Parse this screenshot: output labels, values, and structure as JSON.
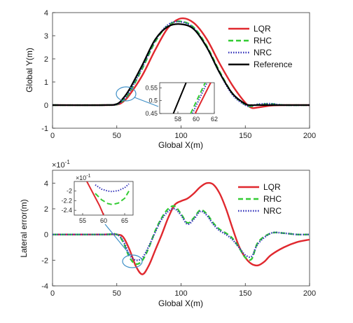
{
  "chart_data": [
    {
      "type": "line",
      "xlabel": "Global X(m)",
      "ylabel": "Global Y(m)",
      "xlim": [
        0,
        200
      ],
      "ylim": [
        -1,
        4
      ],
      "xticks": [
        0,
        50,
        100,
        150,
        200
      ],
      "yticks": [
        -1,
        0,
        1,
        2,
        3,
        4
      ],
      "legend_position": "top-right",
      "series": [
        {
          "name": "LQR",
          "color": "#e0282e",
          "style": "solid",
          "x": [
            0,
            40,
            50,
            55,
            60,
            70,
            80,
            90,
            100,
            110,
            120,
            130,
            140,
            150,
            155,
            160,
            170,
            180,
            200
          ],
          "y": [
            0,
            0,
            0.02,
            0.15,
            0.45,
            1.3,
            2.4,
            3.35,
            3.75,
            3.55,
            2.85,
            1.8,
            0.85,
            0.1,
            -0.12,
            -0.1,
            -0.02,
            0,
            0
          ]
        },
        {
          "name": "RHC",
          "color": "#33cc33",
          "style": "dashed",
          "x": [
            0,
            40,
            50,
            55,
            60,
            70,
            80,
            90,
            100,
            110,
            120,
            130,
            140,
            150,
            155,
            160,
            170,
            180,
            200
          ],
          "y": [
            0,
            0,
            0.03,
            0.2,
            0.55,
            1.6,
            2.75,
            3.45,
            3.62,
            3.35,
            2.55,
            1.45,
            0.5,
            0.02,
            -0.05,
            0.02,
            0.05,
            0,
            0
          ]
        },
        {
          "name": "NRC",
          "color": "#3333bb",
          "style": "dotted",
          "x": [
            0,
            40,
            50,
            55,
            60,
            70,
            80,
            90,
            100,
            110,
            120,
            130,
            140,
            150,
            155,
            160,
            170,
            180,
            200
          ],
          "y": [
            0,
            0,
            0.03,
            0.22,
            0.58,
            1.65,
            2.8,
            3.48,
            3.6,
            3.32,
            2.5,
            1.4,
            0.45,
            0.0,
            -0.03,
            0.04,
            0.06,
            0,
            0
          ]
        },
        {
          "name": "Reference",
          "color": "#000000",
          "style": "solid",
          "x": [
            0,
            40,
            50,
            55,
            60,
            70,
            80,
            90,
            100,
            110,
            120,
            130,
            140,
            150,
            155,
            160,
            170,
            180,
            200
          ],
          "y": [
            0,
            0,
            0.05,
            0.3,
            0.7,
            1.75,
            2.85,
            3.4,
            3.5,
            3.28,
            2.5,
            1.4,
            0.5,
            0.05,
            0,
            0,
            0,
            0,
            0
          ]
        }
      ],
      "inset": {
        "xlim": [
          56,
          62
        ],
        "ylim": [
          0.45,
          0.57
        ],
        "xticks": [
          58,
          60,
          62
        ],
        "yticks": [
          0.45,
          0.5,
          0.55
        ],
        "series": [
          {
            "name": "LQR",
            "x": [
              59.9,
              61.6
            ],
            "y": [
              0.45,
              0.57
            ]
          },
          {
            "name": "RHC",
            "x": [
              59.4,
              61.0
            ],
            "y": [
              0.45,
              0.57
            ]
          },
          {
            "name": "NRC",
            "x": [
              59.6,
              61.2
            ],
            "y": [
              0.45,
              0.57
            ]
          },
          {
            "name": "Reference",
            "x": [
              57.5,
              58.9
            ],
            "y": [
              0.45,
              0.57
            ]
          }
        ]
      }
    },
    {
      "type": "line",
      "xlabel": "Global X(m)",
      "ylabel": "Lateral error(m)",
      "scale_label": "×10",
      "scale_exp": "-1",
      "xlim": [
        0,
        200
      ],
      "ylim": [
        -4,
        5
      ],
      "xticks": [
        0,
        50,
        100,
        150,
        200
      ],
      "yticks": [
        -4,
        -2,
        0,
        2,
        4
      ],
      "legend_position": "top-right",
      "series": [
        {
          "name": "LQR",
          "color": "#e0282e",
          "style": "solid",
          "x": [
            0,
            40,
            50,
            55,
            60,
            65,
            70,
            75,
            80,
            85,
            90,
            95,
            100,
            105,
            110,
            115,
            120,
            125,
            130,
            135,
            140,
            145,
            150,
            155,
            160,
            165,
            170,
            180,
            190,
            200
          ],
          "y": [
            0,
            0,
            0,
            -0.2,
            -1.2,
            -2.5,
            -3.1,
            -2.4,
            -1.2,
            0.0,
            1.3,
            2.3,
            2.6,
            2.8,
            3.2,
            3.7,
            4.0,
            3.9,
            3.2,
            2.0,
            0.5,
            -0.9,
            -1.8,
            -2.3,
            -2.4,
            -2.1,
            -1.6,
            -1.0,
            -0.6,
            -0.4
          ]
        },
        {
          "name": "RHC",
          "color": "#33cc33",
          "style": "dashed",
          "x": [
            0,
            40,
            50,
            55,
            60,
            65,
            70,
            75,
            80,
            85,
            90,
            95,
            100,
            105,
            110,
            115,
            120,
            125,
            130,
            135,
            140,
            145,
            150,
            155,
            160,
            170,
            180,
            190,
            200
          ],
          "y": [
            0,
            0,
            0,
            -0.6,
            -1.8,
            -2.3,
            -2.0,
            -1.0,
            0.3,
            1.3,
            2.0,
            2.2,
            1.6,
            0.9,
            1.3,
            1.9,
            1.6,
            0.9,
            0.4,
            0.1,
            -0.3,
            -1.0,
            -1.8,
            -1.9,
            -0.6,
            0.1,
            0.1,
            0,
            0
          ]
        },
        {
          "name": "NRC",
          "color": "#3333bb",
          "style": "dotted",
          "x": [
            0,
            40,
            50,
            55,
            60,
            65,
            70,
            75,
            80,
            85,
            90,
            95,
            100,
            105,
            110,
            115,
            120,
            125,
            130,
            135,
            140,
            145,
            150,
            155,
            160,
            170,
            180,
            190,
            200
          ],
          "y": [
            0,
            0,
            0,
            -0.5,
            -1.6,
            -2.0,
            -1.8,
            -0.9,
            0.2,
            1.2,
            1.8,
            2.0,
            1.5,
            0.8,
            1.2,
            1.8,
            1.5,
            0.8,
            0.3,
            0.0,
            -0.4,
            -1.0,
            -1.6,
            -1.7,
            -0.7,
            0.1,
            0.1,
            0,
            0
          ]
        }
      ],
      "inset": {
        "scale_label": "×10",
        "scale_exp": "-1",
        "xlim": [
          53,
          67
        ],
        "ylim": [
          -2.5,
          -1.8
        ],
        "xticks": [
          55,
          60,
          65
        ],
        "yticks": [
          -2,
          -2.2,
          -2.4
        ],
        "series": [
          {
            "name": "LQR",
            "x": [
              56.0,
              57.5,
              59.0,
              60.0
            ],
            "y": [
              -1.8,
              -2.05,
              -2.3,
              -2.5
            ]
          },
          {
            "name": "RHC",
            "x": [
              58,
              59.5,
              61,
              62,
              63.5,
              65,
              66
            ],
            "y": [
              -2.05,
              -2.18,
              -2.26,
              -2.28,
              -2.25,
              -2.15,
              -2.0
            ]
          },
          {
            "name": "NRC",
            "x": [
              58,
              59.5,
              61,
              62,
              63.5,
              65,
              66
            ],
            "y": [
              -1.87,
              -1.96,
              -2.0,
              -2.01,
              -1.99,
              -1.93,
              -1.85
            ]
          }
        ]
      }
    }
  ]
}
